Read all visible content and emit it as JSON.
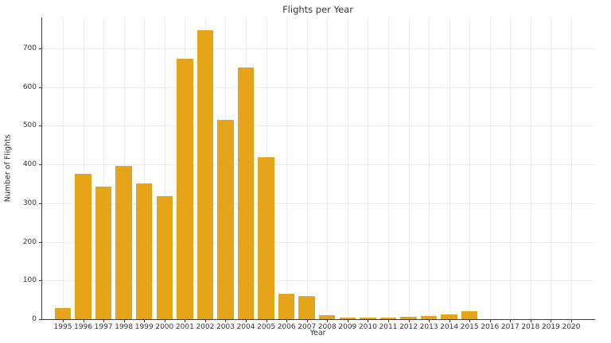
{
  "chart_data": {
    "type": "bar",
    "title": "Flights per Year",
    "xlabel": "Year",
    "ylabel": "Number of Flights",
    "categories": [
      "1995",
      "1996",
      "1997",
      "1998",
      "1999",
      "2000",
      "2001",
      "2002",
      "2003",
      "2004",
      "2005",
      "2006",
      "2007",
      "2008",
      "2009",
      "2010",
      "2011",
      "2012",
      "2013",
      "2014",
      "2015",
      "2016",
      "2017",
      "2018",
      "2019",
      "2020"
    ],
    "values": [
      28,
      375,
      343,
      396,
      351,
      318,
      673,
      748,
      516,
      650,
      418,
      65,
      60,
      10,
      4,
      4,
      5,
      6,
      9,
      13,
      21,
      0,
      0,
      0,
      0,
      0
    ],
    "yticks": [
      0,
      100,
      200,
      300,
      400,
      500,
      600,
      700
    ],
    "ylim": [
      0,
      780
    ],
    "grid": true,
    "legend": null,
    "bar_color": "#e5a41a",
    "gridline_color": "#ebebeb",
    "axis_color": "#3b3b3b",
    "text_color": "#333333",
    "background_color": "#ffffff"
  }
}
